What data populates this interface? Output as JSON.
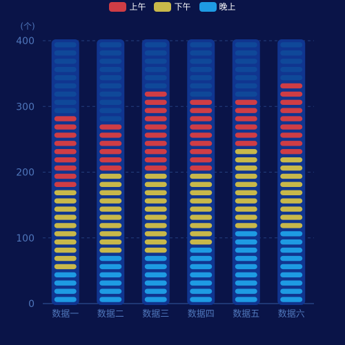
{
  "chart_data": {
    "type": "bar",
    "title": "",
    "xlabel": "",
    "ylabel": "(个)",
    "ylim": [
      0,
      400
    ],
    "yticks": [
      0,
      100,
      200,
      300,
      400
    ],
    "categories": [
      "数据一",
      "数据二",
      "数据三",
      "数据四",
      "数据五",
      "数据六"
    ],
    "stacked": true,
    "series": [
      {
        "name": "晚上",
        "values": [
          50,
          70,
          70,
          90,
          110,
          110
        ],
        "color": "#1e9be3"
      },
      {
        "name": "下午",
        "values": [
          130,
          120,
          120,
          110,
          120,
          110
        ],
        "color": "#c8b84a"
      },
      {
        "name": "上午",
        "values": [
          110,
          70,
          130,
          110,
          70,
          110
        ],
        "color": "#cf3d45"
      }
    ],
    "background_capacity": 400,
    "segment_unit": 12.5,
    "empty_color": "#0f4899",
    "track_color": "#10358f",
    "axis_color": "#3f6cb7",
    "grid": true,
    "legend_position": "top-center"
  },
  "legend": [
    {
      "label": "上午",
      "color": "#cf3d45"
    },
    {
      "label": "下午",
      "color": "#c8b84a"
    },
    {
      "label": "晚上",
      "color": "#1e9be3"
    }
  ]
}
